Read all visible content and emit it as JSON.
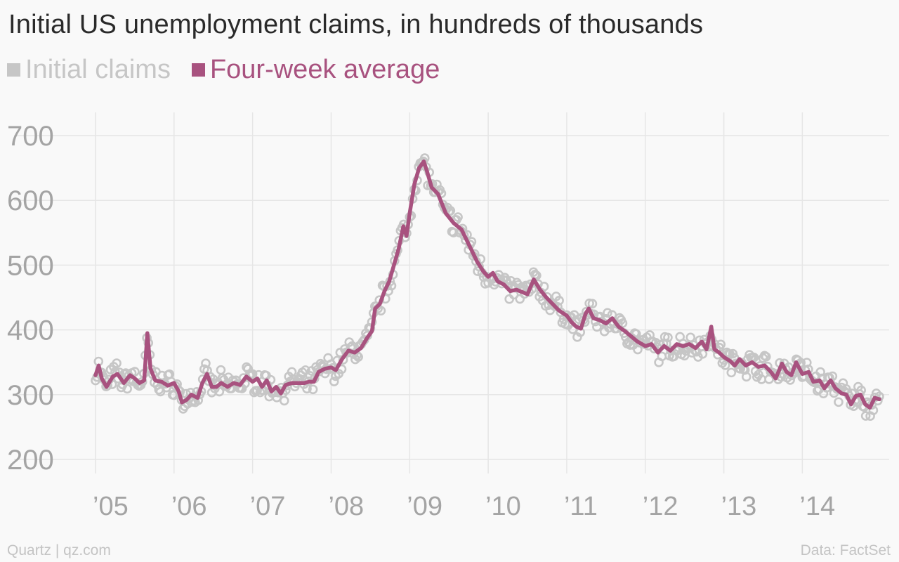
{
  "chart_data": {
    "type": "line",
    "title": "Initial US unemployment claims, in hundreds of thousands",
    "series": [
      {
        "name": "Initial claims",
        "color": "#c6c6c6",
        "style": "points"
      },
      {
        "name": "Four-week average",
        "color": "#a8527f",
        "style": "line",
        "points": [
          [
            2005.0,
            330
          ],
          [
            2005.04,
            345
          ],
          [
            2005.08,
            325
          ],
          [
            2005.14,
            312
          ],
          [
            2005.22,
            328
          ],
          [
            2005.28,
            332
          ],
          [
            2005.36,
            318
          ],
          [
            2005.44,
            330
          ],
          [
            2005.5,
            325
          ],
          [
            2005.56,
            318
          ],
          [
            2005.62,
            322
          ],
          [
            2005.66,
            395
          ],
          [
            2005.7,
            340
          ],
          [
            2005.76,
            322
          ],
          [
            2005.84,
            320
          ],
          [
            2005.92,
            314
          ],
          [
            2006.0,
            318
          ],
          [
            2006.06,
            305
          ],
          [
            2006.1,
            288
          ],
          [
            2006.16,
            292
          ],
          [
            2006.22,
            300
          ],
          [
            2006.3,
            295
          ],
          [
            2006.36,
            318
          ],
          [
            2006.42,
            332
          ],
          [
            2006.48,
            312
          ],
          [
            2006.54,
            312
          ],
          [
            2006.6,
            318
          ],
          [
            2006.68,
            312
          ],
          [
            2006.76,
            318
          ],
          [
            2006.84,
            315
          ],
          [
            2006.92,
            328
          ],
          [
            2007.0,
            320
          ],
          [
            2007.06,
            325
          ],
          [
            2007.12,
            312
          ],
          [
            2007.18,
            322
          ],
          [
            2007.24,
            305
          ],
          [
            2007.3,
            312
          ],
          [
            2007.36,
            302
          ],
          [
            2007.42,
            315
          ],
          [
            2007.5,
            318
          ],
          [
            2007.58,
            318
          ],
          [
            2007.66,
            318
          ],
          [
            2007.72,
            320
          ],
          [
            2007.78,
            320
          ],
          [
            2007.84,
            335
          ],
          [
            2007.92,
            340
          ],
          [
            2008.0,
            342
          ],
          [
            2008.06,
            338
          ],
          [
            2008.14,
            355
          ],
          [
            2008.22,
            368
          ],
          [
            2008.3,
            365
          ],
          [
            2008.38,
            372
          ],
          [
            2008.46,
            388
          ],
          [
            2008.52,
            398
          ],
          [
            2008.56,
            433
          ],
          [
            2008.62,
            440
          ],
          [
            2008.68,
            460
          ],
          [
            2008.74,
            475
          ],
          [
            2008.8,
            500
          ],
          [
            2008.86,
            525
          ],
          [
            2008.92,
            560
          ],
          [
            2008.96,
            545
          ],
          [
            2009.0,
            580
          ],
          [
            2009.06,
            625
          ],
          [
            2009.12,
            650
          ],
          [
            2009.18,
            660
          ],
          [
            2009.22,
            645
          ],
          [
            2009.28,
            620
          ],
          [
            2009.36,
            610
          ],
          [
            2009.46,
            580
          ],
          [
            2009.56,
            565
          ],
          [
            2009.66,
            555
          ],
          [
            2009.76,
            530
          ],
          [
            2009.86,
            505
          ],
          [
            2009.94,
            490
          ],
          [
            2010.0,
            482
          ],
          [
            2010.06,
            488
          ],
          [
            2010.12,
            475
          ],
          [
            2010.2,
            470
          ],
          [
            2010.28,
            460
          ],
          [
            2010.36,
            462
          ],
          [
            2010.44,
            458
          ],
          [
            2010.5,
            455
          ],
          [
            2010.58,
            478
          ],
          [
            2010.66,
            462
          ],
          [
            2010.74,
            450
          ],
          [
            2010.82,
            440
          ],
          [
            2010.9,
            430
          ],
          [
            2011.0,
            422
          ],
          [
            2011.06,
            412
          ],
          [
            2011.12,
            405
          ],
          [
            2011.18,
            402
          ],
          [
            2011.24,
            425
          ],
          [
            2011.28,
            433
          ],
          [
            2011.34,
            418
          ],
          [
            2011.42,
            415
          ],
          [
            2011.5,
            410
          ],
          [
            2011.58,
            418
          ],
          [
            2011.66,
            405
          ],
          [
            2011.74,
            398
          ],
          [
            2011.82,
            390
          ],
          [
            2011.9,
            382
          ],
          [
            2012.0,
            375
          ],
          [
            2012.08,
            378
          ],
          [
            2012.16,
            365
          ],
          [
            2012.24,
            375
          ],
          [
            2012.32,
            368
          ],
          [
            2012.4,
            378
          ],
          [
            2012.48,
            375
          ],
          [
            2012.56,
            378
          ],
          [
            2012.64,
            372
          ],
          [
            2012.72,
            382
          ],
          [
            2012.78,
            370
          ],
          [
            2012.84,
            405
          ],
          [
            2012.88,
            370
          ],
          [
            2012.94,
            365
          ],
          [
            2013.0,
            358
          ],
          [
            2013.08,
            352
          ],
          [
            2013.14,
            345
          ],
          [
            2013.2,
            355
          ],
          [
            2013.28,
            345
          ],
          [
            2013.36,
            350
          ],
          [
            2013.44,
            343
          ],
          [
            2013.52,
            345
          ],
          [
            2013.6,
            335
          ],
          [
            2013.66,
            325
          ],
          [
            2013.74,
            348
          ],
          [
            2013.8,
            335
          ],
          [
            2013.86,
            330
          ],
          [
            2013.92,
            350
          ],
          [
            2014.0,
            332
          ],
          [
            2014.08,
            335
          ],
          [
            2014.14,
            320
          ],
          [
            2014.22,
            322
          ],
          [
            2014.28,
            310
          ],
          [
            2014.36,
            322
          ],
          [
            2014.42,
            310
          ],
          [
            2014.5,
            302
          ],
          [
            2014.56,
            300
          ],
          [
            2014.62,
            285
          ],
          [
            2014.68,
            298
          ],
          [
            2014.74,
            300
          ],
          [
            2014.8,
            285
          ],
          [
            2014.86,
            280
          ],
          [
            2014.92,
            295
          ],
          [
            2014.98,
            293
          ]
        ]
      }
    ],
    "x_ticks": [
      {
        "value": 2005,
        "label": "’05"
      },
      {
        "value": 2006,
        "label": "’06"
      },
      {
        "value": 2007,
        "label": "’07"
      },
      {
        "value": 2008,
        "label": "’08"
      },
      {
        "value": 2009,
        "label": "’09"
      },
      {
        "value": 2010,
        "label": "’10"
      },
      {
        "value": 2011,
        "label": "’11"
      },
      {
        "value": 2012,
        "label": "’12"
      },
      {
        "value": 2013,
        "label": "’13"
      },
      {
        "value": 2014,
        "label": "’14"
      }
    ],
    "y_ticks": [
      200,
      300,
      400,
      500,
      600,
      700
    ],
    "xlim": [
      2005,
      2014.98
    ],
    "ylim": [
      200,
      700
    ],
    "grid": true,
    "legend_position": "top-left"
  },
  "footer": {
    "source_left": "Quartz | qz.com",
    "source_right": "Data: FactSet"
  }
}
